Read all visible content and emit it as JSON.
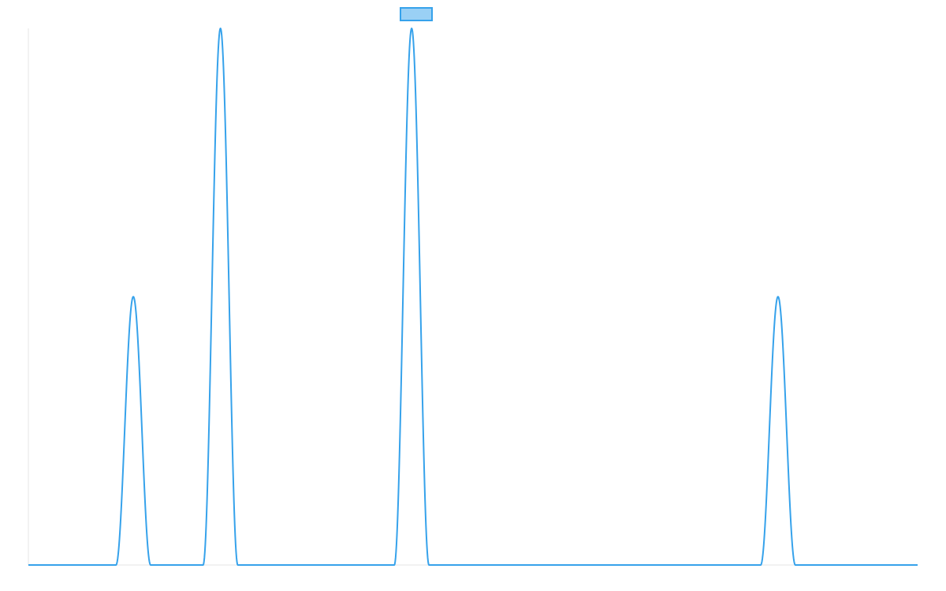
{
  "colors": {
    "line": "#36A2EB",
    "legend_fill": "#9AD0F5",
    "axis": "#e5e5e5",
    "background": "#ffffff"
  },
  "chart_data": {
    "type": "line",
    "title": "",
    "xlabel": "",
    "ylabel": "",
    "grid": false,
    "legend": {
      "placement": "top-center",
      "entries": [
        {
          "label": ""
        }
      ]
    },
    "x_range": [
      0,
      1
    ],
    "ylim": [
      0,
      1
    ],
    "series": [
      {
        "peaks": [
          {
            "center": 0.118,
            "height": 0.5,
            "half_width": 0.0195
          },
          {
            "center": 0.216,
            "height": 1.0,
            "half_width": 0.0195
          },
          {
            "center": 0.431,
            "height": 1.0,
            "half_width": 0.0195
          },
          {
            "center": 0.843,
            "height": 0.5,
            "half_width": 0.0195
          }
        ],
        "baseline": 0
      }
    ]
  }
}
